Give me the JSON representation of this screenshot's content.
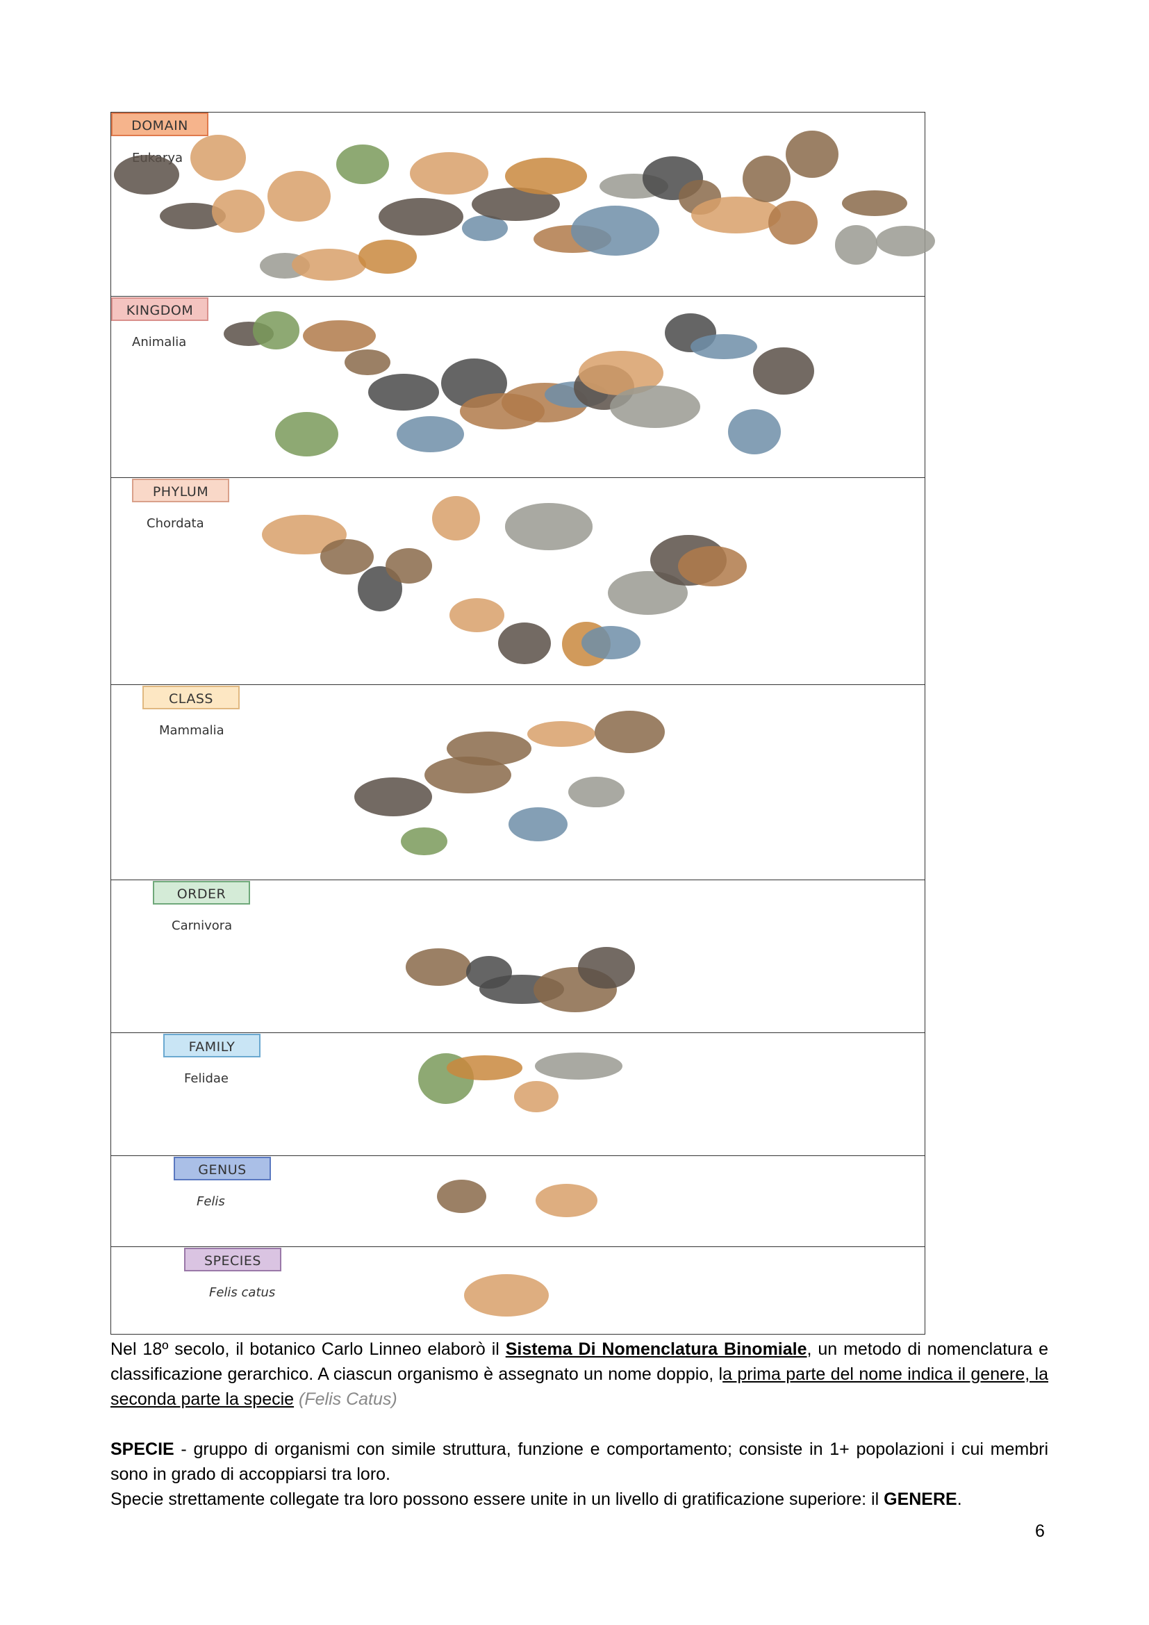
{
  "levels": [
    {
      "rank": "DOMAIN",
      "taxon": "Eukarya"
    },
    {
      "rank": "KINGDOM",
      "taxon": "Animalia"
    },
    {
      "rank": "PHYLUM",
      "taxon": "Chordata"
    },
    {
      "rank": "CLASS",
      "taxon": "Mammalia"
    },
    {
      "rank": "ORDER",
      "taxon": "Carnivora"
    },
    {
      "rank": "FAMILY",
      "taxon": "Felidae"
    },
    {
      "rank": "GENUS",
      "taxon": "Felis"
    },
    {
      "rank": "SPECIES",
      "taxon": "Felis catus"
    }
  ],
  "paragraphs": [
    [
      "Nel 18º secolo, il botanico Carlo Linneo elaborò il ",
      "Sistema Di Nomenclatura Binomiale",
      ", un metodo di nomenclatura e classificazione gerarchico. A ciascun organismo è assegnato un nome doppio, l",
      "a prima parte del nome indica il genere, la seconda parte la specie",
      " ",
      "(Felis Catus)"
    ],
    [
      "SPECIE",
      " - gruppo di organismi con simile struttura, funzione e comportamento; consiste in 1+ popolazioni i cui membri sono in grado di accoppiarsi tra loro."
    ],
    [
      "Specie strettamente collegate tra loro possono essere unite in un livello di gratificazione superiore: il ",
      "GENERE",
      "."
    ]
  ],
  "page_number": "6"
}
